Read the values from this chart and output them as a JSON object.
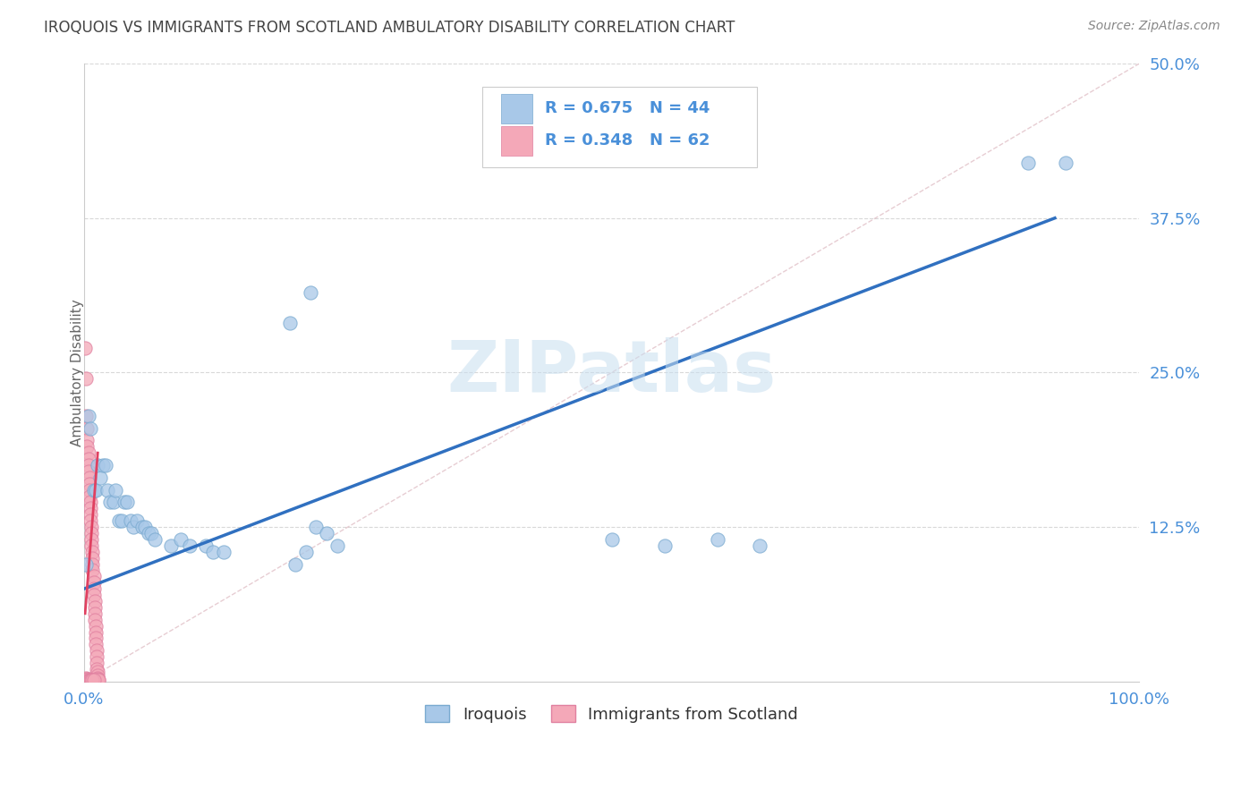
{
  "title": "IROQUOIS VS IMMIGRANTS FROM SCOTLAND AMBULATORY DISABILITY CORRELATION CHART",
  "source": "Source: ZipAtlas.com",
  "ylabel": "Ambulatory Disability",
  "xlim": [
    0,
    1.0
  ],
  "ylim": [
    0,
    0.5
  ],
  "iroquois_color": "#a8c8e8",
  "iroquois_edge": "#7aaad0",
  "scotland_color": "#f4a8b8",
  "scotland_edge": "#e080a0",
  "trendline_iro_color": "#3070c0",
  "trendline_sco_color": "#e04060",
  "ref_line_color": "#d8b8c0",
  "grid_color": "#d8d8d8",
  "axis_tick_color": "#4a90d9",
  "title_color": "#444444",
  "source_color": "#888888",
  "ylabel_color": "#666666",
  "iroquois_R": 0.675,
  "iroquois_N": 44,
  "scotland_R": 0.348,
  "scotland_N": 62,
  "legend_label_1": "Iroquois",
  "legend_label_2": "Immigrants from Scotland",
  "watermark": "ZIPatlas",
  "iroquois_points": [
    [
      0.002,
      0.095
    ],
    [
      0.004,
      0.215
    ],
    [
      0.006,
      0.205
    ],
    [
      0.009,
      0.155
    ],
    [
      0.011,
      0.155
    ],
    [
      0.013,
      0.175
    ],
    [
      0.015,
      0.165
    ],
    [
      0.018,
      0.175
    ],
    [
      0.02,
      0.175
    ],
    [
      0.022,
      0.155
    ],
    [
      0.025,
      0.145
    ],
    [
      0.028,
      0.145
    ],
    [
      0.03,
      0.155
    ],
    [
      0.033,
      0.13
    ],
    [
      0.036,
      0.13
    ],
    [
      0.038,
      0.145
    ],
    [
      0.041,
      0.145
    ],
    [
      0.044,
      0.13
    ],
    [
      0.047,
      0.125
    ],
    [
      0.05,
      0.13
    ],
    [
      0.055,
      0.125
    ],
    [
      0.058,
      0.125
    ],
    [
      0.061,
      0.12
    ],
    [
      0.064,
      0.12
    ],
    [
      0.067,
      0.115
    ],
    [
      0.082,
      0.11
    ],
    [
      0.092,
      0.115
    ],
    [
      0.1,
      0.11
    ],
    [
      0.115,
      0.11
    ],
    [
      0.122,
      0.105
    ],
    [
      0.132,
      0.105
    ],
    [
      0.2,
      0.095
    ],
    [
      0.21,
      0.105
    ],
    [
      0.22,
      0.125
    ],
    [
      0.23,
      0.12
    ],
    [
      0.24,
      0.11
    ],
    [
      0.5,
      0.115
    ],
    [
      0.55,
      0.11
    ],
    [
      0.195,
      0.29
    ],
    [
      0.215,
      0.315
    ],
    [
      0.895,
      0.42
    ],
    [
      0.93,
      0.42
    ],
    [
      0.6,
      0.115
    ],
    [
      0.64,
      0.11
    ]
  ],
  "scotland_points": [
    [
      0.001,
      0.27
    ],
    [
      0.002,
      0.245
    ],
    [
      0.002,
      0.215
    ],
    [
      0.003,
      0.205
    ],
    [
      0.003,
      0.195
    ],
    [
      0.003,
      0.19
    ],
    [
      0.004,
      0.185
    ],
    [
      0.004,
      0.18
    ],
    [
      0.004,
      0.175
    ],
    [
      0.004,
      0.17
    ],
    [
      0.005,
      0.165
    ],
    [
      0.005,
      0.16
    ],
    [
      0.005,
      0.155
    ],
    [
      0.005,
      0.15
    ],
    [
      0.006,
      0.145
    ],
    [
      0.006,
      0.14
    ],
    [
      0.006,
      0.135
    ],
    [
      0.006,
      0.13
    ],
    [
      0.007,
      0.125
    ],
    [
      0.007,
      0.12
    ],
    [
      0.007,
      0.115
    ],
    [
      0.007,
      0.11
    ],
    [
      0.008,
      0.105
    ],
    [
      0.008,
      0.1
    ],
    [
      0.008,
      0.095
    ],
    [
      0.008,
      0.09
    ],
    [
      0.009,
      0.085
    ],
    [
      0.009,
      0.08
    ],
    [
      0.009,
      0.075
    ],
    [
      0.009,
      0.07
    ],
    [
      0.01,
      0.065
    ],
    [
      0.01,
      0.06
    ],
    [
      0.01,
      0.055
    ],
    [
      0.01,
      0.05
    ],
    [
      0.011,
      0.045
    ],
    [
      0.011,
      0.04
    ],
    [
      0.011,
      0.035
    ],
    [
      0.011,
      0.03
    ],
    [
      0.012,
      0.025
    ],
    [
      0.012,
      0.02
    ],
    [
      0.012,
      0.015
    ],
    [
      0.012,
      0.01
    ],
    [
      0.013,
      0.008
    ],
    [
      0.013,
      0.005
    ],
    [
      0.013,
      0.003
    ],
    [
      0.013,
      0.002
    ],
    [
      0.014,
      0.001
    ],
    [
      0.014,
      0.001
    ],
    [
      0.001,
      0.001
    ],
    [
      0.001,
      0.002
    ],
    [
      0.002,
      0.001
    ],
    [
      0.002,
      0.003
    ],
    [
      0.003,
      0.001
    ],
    [
      0.003,
      0.002
    ],
    [
      0.004,
      0.001
    ],
    [
      0.004,
      0.002
    ],
    [
      0.005,
      0.001
    ],
    [
      0.005,
      0.001
    ],
    [
      0.006,
      0.001
    ],
    [
      0.007,
      0.001
    ],
    [
      0.008,
      0.001
    ],
    [
      0.009,
      0.001
    ]
  ],
  "trendline_iro": [
    [
      0.0,
      0.075
    ],
    [
      0.92,
      0.375
    ]
  ],
  "trendline_sco": [
    [
      0.001,
      0.055
    ],
    [
      0.013,
      0.185
    ]
  ],
  "ref_line": [
    [
      0.0,
      0.0
    ],
    [
      1.0,
      0.5
    ]
  ]
}
